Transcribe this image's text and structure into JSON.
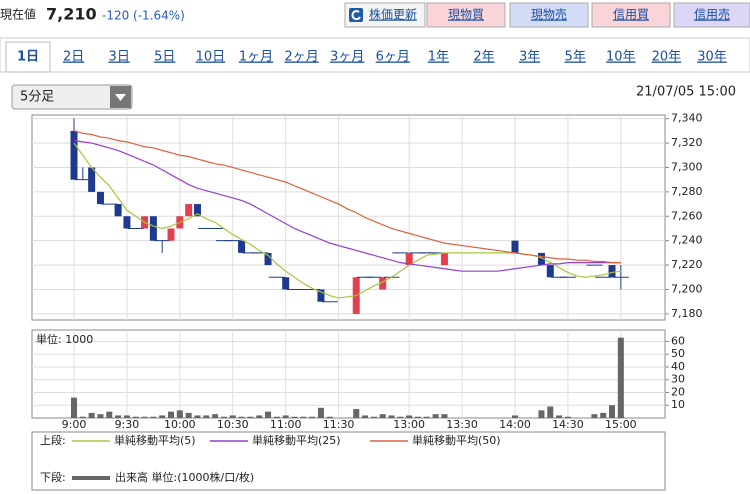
{
  "header": {
    "label": "現在値",
    "price": "7,210",
    "change": "-120 (-1.64%)",
    "buttons": [
      "株価更新",
      "現物買",
      "現物売",
      "信用買",
      "信用売"
    ]
  },
  "tabs": [
    "1日",
    "2日",
    "3日",
    "5日",
    "10日",
    "1ヶ月",
    "2ヶ月",
    "3ヶ月",
    "6ヶ月",
    "1年",
    "2年",
    "3年",
    "5年",
    "10年",
    "20年",
    "30年"
  ],
  "interval": "5分足",
  "timestamp": "21/07/05 15:00",
  "legend": {
    "upper_label": "上段:",
    "lower_label": "下段:",
    "lower_item": "出来高 単位:(1000株/口/枚)"
  },
  "chart_data": [
    {
      "type": "candlestick",
      "categories": [
        "9:00",
        null,
        null,
        null,
        null,
        null,
        "9:30",
        null,
        null,
        null,
        null,
        null,
        "10:00",
        null,
        null,
        null,
        null,
        null,
        "10:30",
        null,
        null,
        null,
        null,
        null,
        "11:00",
        null,
        null,
        null,
        null,
        null,
        "11:30",
        null,
        null,
        null,
        null,
        null,
        null,
        null,
        "13:00",
        null,
        null,
        null,
        null,
        null,
        "13:30",
        null,
        null,
        null,
        null,
        null,
        "14:00",
        null,
        null,
        null,
        null,
        null,
        "14:30",
        null,
        null,
        null,
        null,
        null,
        "15:00"
      ],
      "open": [
        7330,
        7290,
        7300,
        7280,
        7270,
        7270,
        7260,
        7250,
        7250,
        7260,
        7240,
        7240,
        7250,
        7260,
        7270,
        7250,
        7250,
        7240,
        7240,
        7240,
        7230,
        7230,
        7230,
        7210,
        7210,
        7200,
        7200,
        7200,
        7200,
        7190,
        null,
        null,
        7180,
        7210,
        7210,
        7200,
        7210,
        7230,
        7220,
        7230,
        7230,
        7230,
        7220,
        null,
        null,
        null,
        null,
        null,
        null,
        null,
        7240,
        null,
        null,
        7230,
        7220,
        7210,
        7210,
        null,
        null,
        7220,
        7210,
        7220,
        7210
      ],
      "high": [
        7340,
        7300,
        7300,
        7280,
        7270,
        7270,
        7260,
        7250,
        7260,
        7260,
        7240,
        7250,
        7260,
        7270,
        7270,
        7250,
        7250,
        7240,
        7240,
        7240,
        7230,
        7230,
        7230,
        7210,
        7210,
        7200,
        7200,
        7200,
        7200,
        7190,
        null,
        null,
        7210,
        7210,
        7210,
        7210,
        7210,
        7230,
        7230,
        7230,
        7230,
        7230,
        7230,
        null,
        null,
        null,
        null,
        null,
        null,
        null,
        7240,
        null,
        null,
        7230,
        7220,
        7210,
        7210,
        null,
        null,
        7220,
        7210,
        7220,
        7220
      ],
      "low": [
        7290,
        7290,
        7280,
        7270,
        7270,
        7260,
        7250,
        7250,
        7250,
        7240,
        7230,
        7240,
        7250,
        7260,
        7260,
        7250,
        7250,
        7240,
        7240,
        7230,
        7230,
        7230,
        7220,
        7210,
        7200,
        7200,
        7200,
        7200,
        7190,
        7190,
        null,
        null,
        7180,
        7210,
        7210,
        7200,
        7210,
        7230,
        7220,
        7230,
        7230,
        7230,
        7220,
        null,
        null,
        null,
        null,
        null,
        null,
        null,
        7230,
        null,
        null,
        7220,
        7210,
        7210,
        7210,
        null,
        null,
        7220,
        7210,
        7210,
        7200
      ],
      "close": [
        7290,
        7290,
        7280,
        7270,
        7270,
        7260,
        7250,
        7250,
        7260,
        7240,
        7240,
        7250,
        7260,
        7270,
        7260,
        7250,
        7250,
        7240,
        7240,
        7230,
        7230,
        7230,
        7220,
        7210,
        7200,
        7200,
        7200,
        7200,
        7190,
        7190,
        null,
        null,
        7210,
        7210,
        7210,
        7210,
        7210,
        7230,
        7230,
        7230,
        7230,
        7230,
        7230,
        null,
        null,
        null,
        null,
        null,
        null,
        null,
        7230,
        null,
        null,
        7220,
        7210,
        7210,
        7210,
        null,
        null,
        7220,
        7210,
        7210,
        7210
      ],
      "up_color": "#e2404f",
      "down_color": "#1d3a8f",
      "series": [
        {
          "name": "単純移動平均(5)",
          "color": "#a9c63c",
          "values": [
            7320,
            7310,
            7300,
            7292,
            7285,
            7275,
            7265,
            7260,
            7255,
            7252,
            7250,
            7252,
            7255,
            7258,
            7262,
            7258,
            7255,
            7250,
            7245,
            7241,
            7237,
            7232,
            7228,
            7221,
            7215,
            7210,
            7205,
            7201,
            7198,
            7195,
            7193,
            7194,
            7195,
            7199,
            7203,
            7206,
            7210,
            7215,
            7220,
            7224,
            7228,
            7229,
            7230,
            7230,
            7230,
            7230,
            7230,
            7230,
            7230,
            7230,
            7230,
            7229,
            7228,
            7226,
            7222,
            7218,
            7214,
            7211,
            7210,
            7211,
            7212,
            7214,
            7215
          ]
        },
        {
          "name": "単純移動平均(25)",
          "color": "#9440d2",
          "values": [
            7322,
            7321,
            7320,
            7318,
            7316,
            7314,
            7311,
            7308,
            7305,
            7302,
            7298,
            7294,
            7290,
            7286,
            7283,
            7281,
            7279,
            7277,
            7275,
            7273,
            7270,
            7266,
            7262,
            7258,
            7254,
            7250,
            7247,
            7244,
            7241,
            7238,
            7236,
            7234,
            7232,
            7230,
            7228,
            7226,
            7224,
            7222,
            7221,
            7220,
            7219,
            7218,
            7217,
            7216,
            7215,
            7215,
            7215,
            7215,
            7215,
            7216,
            7217,
            7218,
            7219,
            7220,
            7221,
            7221,
            7222,
            7222,
            7222,
            7222,
            7222,
            7222,
            7222
          ]
        },
        {
          "name": "単純移動平均(50)",
          "color": "#e0603e",
          "values": [
            7330,
            7328,
            7327,
            7325,
            7324,
            7322,
            7321,
            7319,
            7317,
            7316,
            7314,
            7312,
            7310,
            7309,
            7307,
            7305,
            7303,
            7302,
            7300,
            7298,
            7296,
            7294,
            7292,
            7290,
            7288,
            7285,
            7282,
            7279,
            7276,
            7273,
            7270,
            7266,
            7263,
            7259,
            7256,
            7253,
            7250,
            7248,
            7246,
            7244,
            7242,
            7240,
            7238,
            7237,
            7236,
            7235,
            7234,
            7233,
            7232,
            7231,
            7230,
            7229,
            7228,
            7227,
            7226,
            7225,
            7225,
            7224,
            7224,
            7223,
            7223,
            7222,
            7222
          ]
        }
      ],
      "ylim": [
        7175,
        7343
      ],
      "yticks": [
        {
          "value": 7180,
          "label": "7,180"
        },
        {
          "value": 7200,
          "label": "7,200"
        },
        {
          "value": 7220,
          "label": "7,220"
        },
        {
          "value": 7240,
          "label": "7,240"
        },
        {
          "value": 7260,
          "label": "7,260"
        },
        {
          "value": 7280,
          "label": "7,280"
        },
        {
          "value": 7300,
          "label": "7,300"
        },
        {
          "value": 7320,
          "label": "7,320"
        },
        {
          "value": 7340,
          "label": "7,340"
        }
      ],
      "grid": true
    },
    {
      "type": "bar",
      "title": "単位: 1000",
      "color": "#666666",
      "values": [
        16,
        1,
        4,
        3,
        5,
        2,
        2,
        1,
        1,
        1,
        2,
        5,
        6,
        4,
        2,
        2,
        3,
        1,
        2,
        1,
        1,
        2,
        5,
        1,
        2,
        1,
        1,
        1,
        8,
        1,
        null,
        null,
        7,
        2,
        1,
        3,
        2,
        1,
        2,
        1,
        1,
        3,
        3,
        null,
        null,
        null,
        null,
        null,
        null,
        null,
        2,
        null,
        null,
        6,
        9,
        2,
        1,
        null,
        null,
        3,
        4,
        10,
        63
      ],
      "ylim": [
        0,
        69
      ],
      "yticks": [
        10,
        20,
        30,
        40,
        50,
        60
      ],
      "grid": true
    }
  ]
}
